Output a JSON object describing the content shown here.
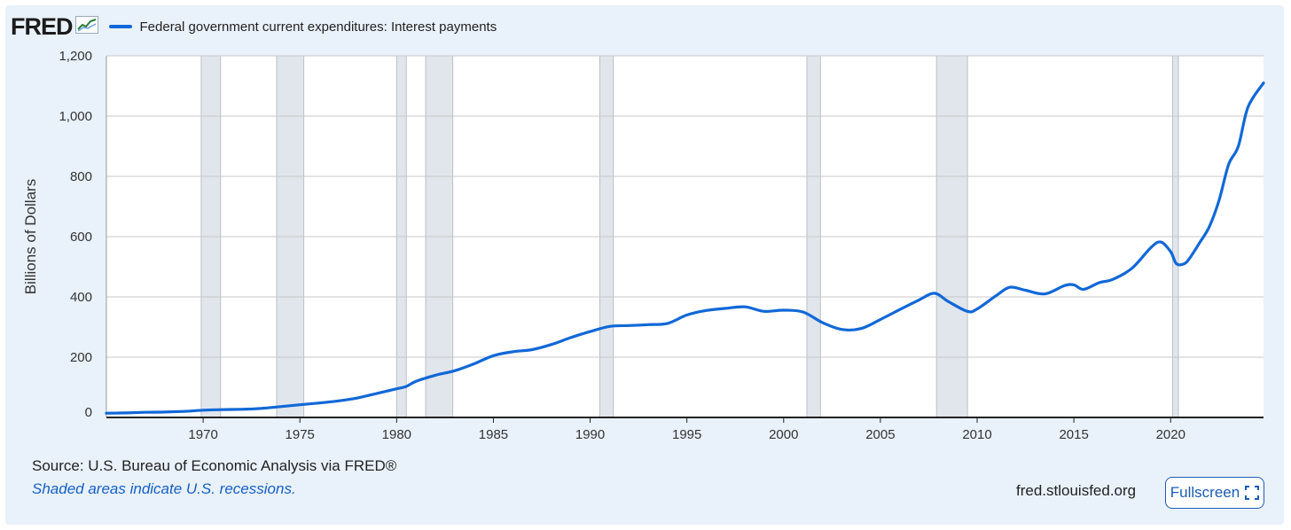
{
  "logo": {
    "text": "FRED"
  },
  "legend": {
    "label": "Federal government current expenditures: Interest payments",
    "color": "#1168d8"
  },
  "footer": {
    "source": "Source: U.S. Bureau of Economic Analysis via FRED®",
    "note": "Shaded areas indicate U.S. recessions.",
    "site": "fred.stlouisfed.org",
    "fullscreen_label": "Fullscreen"
  },
  "colors": {
    "line": "#1168d8",
    "recession": "#e1e6ec",
    "grid": "#c8c8c8",
    "panel": "#e9f1fa"
  },
  "chart_data": {
    "type": "line",
    "title": "Federal government current expenditures: Interest payments",
    "ylabel": "Billions of Dollars",
    "xlabel": "",
    "xlim": [
      1965,
      2024.8
    ],
    "ylim": [
      0,
      1200
    ],
    "yticks": [
      0,
      200,
      400,
      600,
      800,
      1000,
      1200
    ],
    "ytick_labels": [
      "0",
      "200",
      "400",
      "600",
      "800",
      "1,000",
      "1,200"
    ],
    "xticks": [
      1970,
      1975,
      1980,
      1985,
      1990,
      1995,
      2000,
      2005,
      2010,
      2015,
      2020
    ],
    "xtick_labels": [
      "1970",
      "1975",
      "1980",
      "1985",
      "1990",
      "1995",
      "2000",
      "2005",
      "2010",
      "2015",
      "2020"
    ],
    "grid": true,
    "recessions": [
      [
        1969.9,
        1970.9
      ],
      [
        1973.8,
        1975.2
      ],
      [
        1980.0,
        1980.5
      ],
      [
        1981.5,
        1982.9
      ],
      [
        1990.5,
        1991.2
      ],
      [
        2001.2,
        2001.9
      ],
      [
        2007.9,
        2009.5
      ],
      [
        2020.1,
        2020.4
      ]
    ],
    "series": [
      {
        "name": "Federal government current expenditures: Interest payments",
        "color": "#1168d8",
        "points": [
          [
            1965.0,
            14
          ],
          [
            1966.0,
            15
          ],
          [
            1967.0,
            17
          ],
          [
            1968.0,
            18
          ],
          [
            1969.0,
            20
          ],
          [
            1970.0,
            24
          ],
          [
            1971.0,
            26
          ],
          [
            1972.0,
            27
          ],
          [
            1973.0,
            30
          ],
          [
            1974.0,
            36
          ],
          [
            1975.0,
            42
          ],
          [
            1976.0,
            48
          ],
          [
            1977.0,
            55
          ],
          [
            1978.0,
            65
          ],
          [
            1979.0,
            80
          ],
          [
            1980.0,
            95
          ],
          [
            1980.5,
            103
          ],
          [
            1981.0,
            120
          ],
          [
            1982.0,
            140
          ],
          [
            1983.0,
            155
          ],
          [
            1984.0,
            178
          ],
          [
            1985.0,
            205
          ],
          [
            1986.0,
            218
          ],
          [
            1987.0,
            225
          ],
          [
            1988.0,
            242
          ],
          [
            1989.0,
            265
          ],
          [
            1990.0,
            285
          ],
          [
            1991.0,
            302
          ],
          [
            1992.0,
            305
          ],
          [
            1993.0,
            308
          ],
          [
            1994.0,
            312
          ],
          [
            1995.0,
            340
          ],
          [
            1996.0,
            355
          ],
          [
            1997.0,
            362
          ],
          [
            1998.0,
            367
          ],
          [
            1999.0,
            352
          ],
          [
            2000.0,
            356
          ],
          [
            2001.0,
            350
          ],
          [
            2002.0,
            315
          ],
          [
            2003.0,
            292
          ],
          [
            2004.0,
            295
          ],
          [
            2005.0,
            325
          ],
          [
            2006.0,
            358
          ],
          [
            2007.0,
            390
          ],
          [
            2007.8,
            412
          ],
          [
            2008.5,
            385
          ],
          [
            2009.5,
            352
          ],
          [
            2010.0,
            360
          ],
          [
            2011.0,
            405
          ],
          [
            2011.7,
            432
          ],
          [
            2012.5,
            422
          ],
          [
            2013.5,
            410
          ],
          [
            2014.5,
            437
          ],
          [
            2015.0,
            440
          ],
          [
            2015.5,
            425
          ],
          [
            2016.3,
            447
          ],
          [
            2017.0,
            458
          ],
          [
            2018.0,
            495
          ],
          [
            2019.0,
            565
          ],
          [
            2019.5,
            582
          ],
          [
            2020.0,
            550
          ],
          [
            2020.3,
            510
          ],
          [
            2020.7,
            510
          ],
          [
            2021.0,
            530
          ],
          [
            2021.5,
            580
          ],
          [
            2022.0,
            633
          ],
          [
            2022.5,
            720
          ],
          [
            2023.0,
            840
          ],
          [
            2023.5,
            900
          ],
          [
            2024.0,
            1030
          ],
          [
            2024.8,
            1110
          ]
        ]
      }
    ]
  }
}
